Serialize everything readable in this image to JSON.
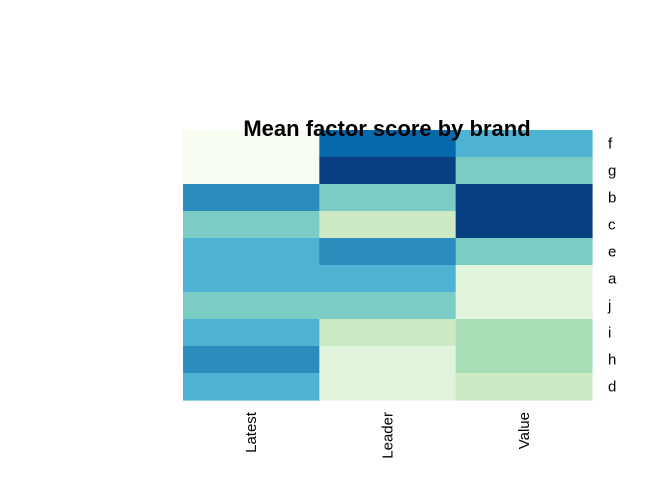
{
  "chart_data": {
    "type": "heatmap",
    "title": "Mean factor score by brand",
    "columns": [
      "Latest",
      "Leader",
      "Value"
    ],
    "rows": [
      "f",
      "g",
      "b",
      "c",
      "e",
      "a",
      "j",
      "i",
      "h",
      "d"
    ],
    "colormap": "GnBu",
    "palette": [
      "#F7FCF0",
      "#E0F3DB",
      "#CCEBC5",
      "#A8DDB5",
      "#7BCCC4",
      "#4EB3D3",
      "#2B8CBE",
      "#0868AC",
      "#084081"
    ],
    "values": [
      [
        0,
        7,
        5
      ],
      [
        0,
        8,
        4
      ],
      [
        6,
        4,
        8
      ],
      [
        4,
        2,
        8
      ],
      [
        5,
        6,
        4
      ],
      [
        5,
        5,
        1
      ],
      [
        4,
        4,
        1
      ],
      [
        5,
        2,
        3
      ],
      [
        6,
        1,
        3
      ],
      [
        5,
        1,
        2
      ]
    ]
  }
}
